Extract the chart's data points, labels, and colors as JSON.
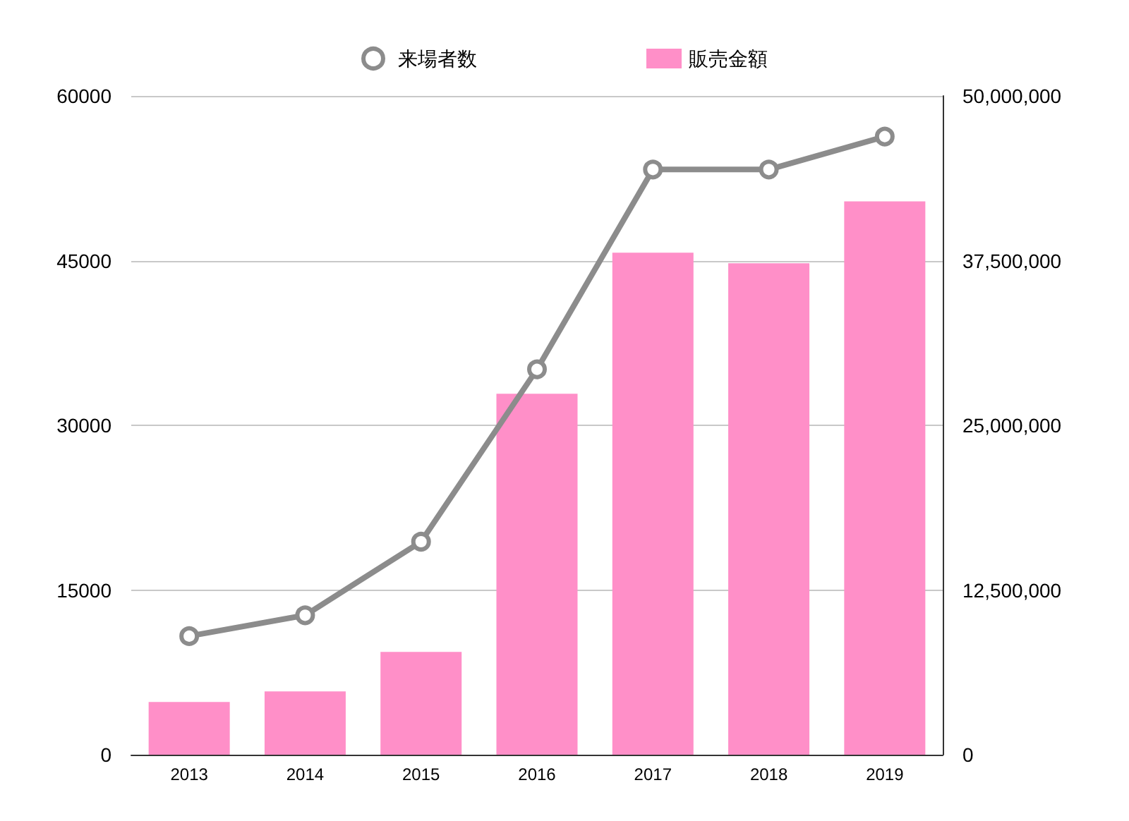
{
  "chart_data": {
    "type": "bar",
    "categories": [
      "2013",
      "2014",
      "2015",
      "2016",
      "2017",
      "2018",
      "2019"
    ],
    "series": [
      {
        "name": "来場者数",
        "type": "line",
        "color": "#8c8c8c",
        "marker": "circle",
        "values": [
          10800,
          12700,
          19400,
          35100,
          53300,
          53300,
          56300
        ]
      },
      {
        "name": "販売金額",
        "axis": "y2",
        "color": "#ff8fc8",
        "values": [
          4000000,
          4800000,
          7800000,
          27400000,
          38100000,
          37300000,
          42000000
        ]
      }
    ],
    "ylim": [
      0,
      60000
    ],
    "yticks": [
      0,
      15000,
      30000,
      45000,
      60000
    ],
    "y2lim": [
      0,
      50000000
    ],
    "y2ticks": [
      {
        "value": 0,
        "label": "0"
      },
      {
        "value": 12500000,
        "label": "12,500,000"
      },
      {
        "value": 25000000,
        "label": "25,000,000"
      },
      {
        "value": 37500000,
        "label": "37,500,000"
      },
      {
        "value": 50000000,
        "label": "50,000,000"
      }
    ],
    "grid": "y",
    "legend": "top"
  }
}
